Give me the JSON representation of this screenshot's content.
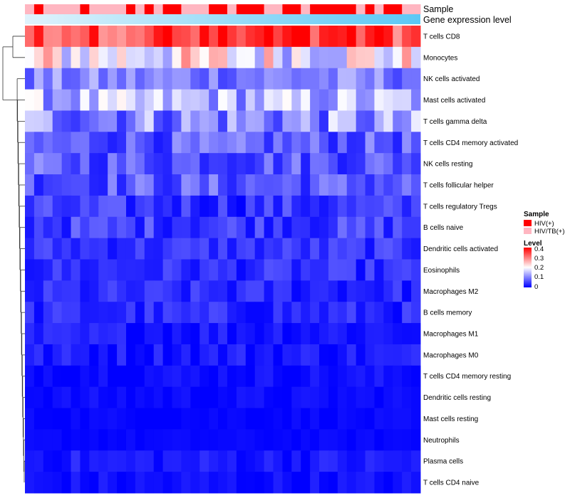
{
  "chart_data": {
    "type": "heatmap",
    "title": "",
    "annotation_tracks": [
      {
        "name": "Sample",
        "kind": "categorical"
      },
      {
        "name": "Gene expression level",
        "kind": "continuous-bar"
      }
    ],
    "rows": [
      "T cells CD8",
      "Monocytes",
      "NK cells activated",
      "Mast cells activated",
      "T cells gamma delta",
      "T cells CD4 memory activated",
      "NK cells resting",
      "T cells follicular helper",
      "T cells regulatory  Tregs",
      "B cells naive",
      "Dendritic cells activated",
      "Eosinophils",
      "Macrophages M2",
      "B cells memory",
      "Macrophages M1",
      "Macrophages M0",
      "T cells CD4 memory resting",
      "Dendritic cells resting",
      "Mast cells resting",
      "Neutrophils",
      "Plasma cells",
      "T cells CD4 naive"
    ],
    "n_columns": 43,
    "row_levels": [
      0.34,
      0.2,
      0.1,
      0.14,
      0.11,
      0.07,
      0.07,
      0.07,
      0.04,
      0.05,
      0.04,
      0.035,
      0.03,
      0.03,
      0.02,
      0.02,
      0.012,
      0.008,
      0.005,
      0.005,
      0.02,
      0.01
    ],
    "row_spread": [
      0.06,
      0.1,
      0.05,
      0.07,
      0.08,
      0.05,
      0.05,
      0.05,
      0.04,
      0.04,
      0.03,
      0.03,
      0.03,
      0.03,
      0.025,
      0.025,
      0.015,
      0.012,
      0.008,
      0.006,
      0.02,
      0.018
    ],
    "legend": {
      "sample": {
        "title": "Sample",
        "entries": [
          {
            "label": "HIV(+)",
            "color": "#ff0000"
          },
          {
            "label": "HIV/TB(+)",
            "color": "#ffb6c1"
          }
        ]
      },
      "level": {
        "title": "Level",
        "ticks": [
          "0.4",
          "0.3",
          "0.2",
          "0.1",
          "0"
        ],
        "range": [
          0,
          0.4
        ],
        "colors": [
          "#0000ff",
          "#ffffff",
          "#ff0000"
        ]
      }
    },
    "gene_bar_colors": [
      "#e0f3fc",
      "#5bc8f5"
    ]
  }
}
